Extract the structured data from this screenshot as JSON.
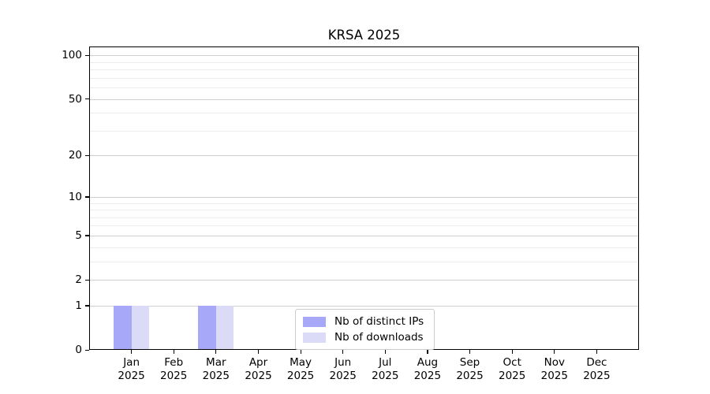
{
  "chart_data": {
    "type": "bar",
    "title": "KRSA 2025",
    "categories": [
      "Jan",
      "Feb",
      "Mar",
      "Apr",
      "May",
      "Jun",
      "Jul",
      "Aug",
      "Sep",
      "Oct",
      "Nov",
      "Dec"
    ],
    "x_year_label": "2025",
    "series": [
      {
        "name": "Nb of distinct IPs",
        "color": "#a8a8f8",
        "values": [
          1,
          0,
          1,
          0,
          0,
          0,
          0,
          0,
          0,
          0,
          0,
          0
        ]
      },
      {
        "name": "Nb of downloads",
        "color": "#dbdbf8",
        "values": [
          1,
          0,
          1,
          0,
          0,
          0,
          0,
          0,
          0,
          0,
          0,
          0
        ]
      }
    ],
    "yscale": "log1p",
    "ylim": [
      0,
      115
    ],
    "y_major_ticks": [
      0,
      1,
      2,
      5,
      10,
      20,
      50,
      100
    ],
    "y_minor_gridlines": [
      3,
      4,
      6,
      7,
      8,
      9,
      30,
      40,
      60,
      70,
      80,
      90
    ],
    "grid": true,
    "legend_position": "bottom-center",
    "colors": {
      "grid_major": "#cfcfcf",
      "grid_minor": "#ececec",
      "spine": "#000000",
      "background": "#ffffff"
    }
  }
}
